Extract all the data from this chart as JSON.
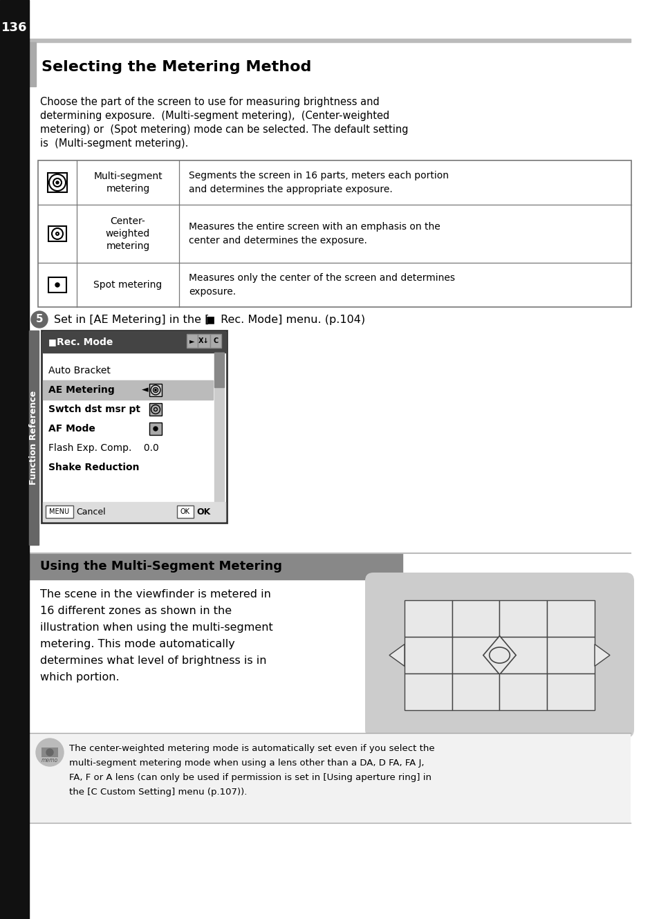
{
  "page_num": "136",
  "page_bg": "#ffffff",
  "left_bar_color": "#111111",
  "title": "Selecting the Metering Method",
  "header_bar_color": "#bbbbbb",
  "intro_lines": [
    "Choose the part of the screen to use for measuring brightness and",
    "determining exposure.  (Multi-segment metering),  (Center-weighted",
    "metering) or  (Spot metering) mode can be selected. The default setting",
    "is  (Multi-segment metering)."
  ],
  "table_rows": [
    {
      "icon": "multi",
      "name": "Multi-segment\nmetering",
      "desc": "Segments the screen in 16 parts, meters each portion\nand determines the appropriate exposure."
    },
    {
      "icon": "center",
      "name": "Center-\nweighted\nmetering",
      "desc": "Measures the entire screen with an emphasis on the\ncenter and determines the exposure."
    },
    {
      "icon": "spot",
      "name": "Spot metering",
      "desc": "Measures only the center of the screen and determines\nexposure."
    }
  ],
  "step_num": "5",
  "sidebar_label": "Function Reference",
  "sidebar_color": "#666666",
  "menu_items": [
    "Auto Bracket",
    "AE Metering",
    "Swtch dst msr pt",
    "AF Mode",
    "Flash Exp. Comp.    0.0",
    "Shake Reduction"
  ],
  "menu_selected": "AE Metering",
  "section2_title": "Using the Multi-Segment Metering",
  "section2_text_lines": [
    "The scene in the viewfinder is metered in",
    "16 different zones as shown in the",
    "illustration when using the multi-segment",
    "metering. This mode automatically",
    "determines what level of brightness is in",
    "which portion."
  ],
  "memo_lines": [
    "The center-weighted metering mode is automatically set even if you select the",
    "multi-segment metering mode when using a lens other than a DA, D FA, FA J,",
    "FA, F or A lens (can only be used if permission is set in [Using aperture ring] in",
    "the [C Custom Setting] menu (p.107))."
  ]
}
